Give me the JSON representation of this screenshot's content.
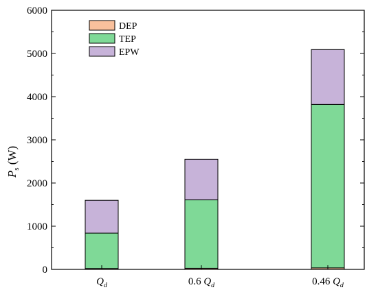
{
  "chart_data": {
    "type": "bar",
    "stacked": true,
    "categories": [
      {
        "main": "Q",
        "sub": "d"
      },
      {
        "prefix": "0.6 ",
        "main": "Q",
        "sub": "d"
      },
      {
        "prefix": "0.46 ",
        "main": "Q",
        "sub": "d"
      }
    ],
    "series": [
      {
        "name": "DEP",
        "color": "#f9c09c",
        "values": [
          20,
          25,
          35
        ]
      },
      {
        "name": "TEP",
        "color": "#7fd997",
        "values": [
          820,
          1585,
          3785
        ]
      },
      {
        "name": "EPW",
        "color": "#c7b3d9",
        "values": [
          760,
          940,
          1270
        ]
      }
    ],
    "ylabel": {
      "main": "P",
      "sub": "s",
      "unit": " (W)"
    },
    "ylim": [
      0,
      6000
    ],
    "yticks": [
      0,
      1000,
      2000,
      3000,
      4000,
      5000,
      6000
    ],
    "grid": false,
    "legend_position": "top-left"
  }
}
